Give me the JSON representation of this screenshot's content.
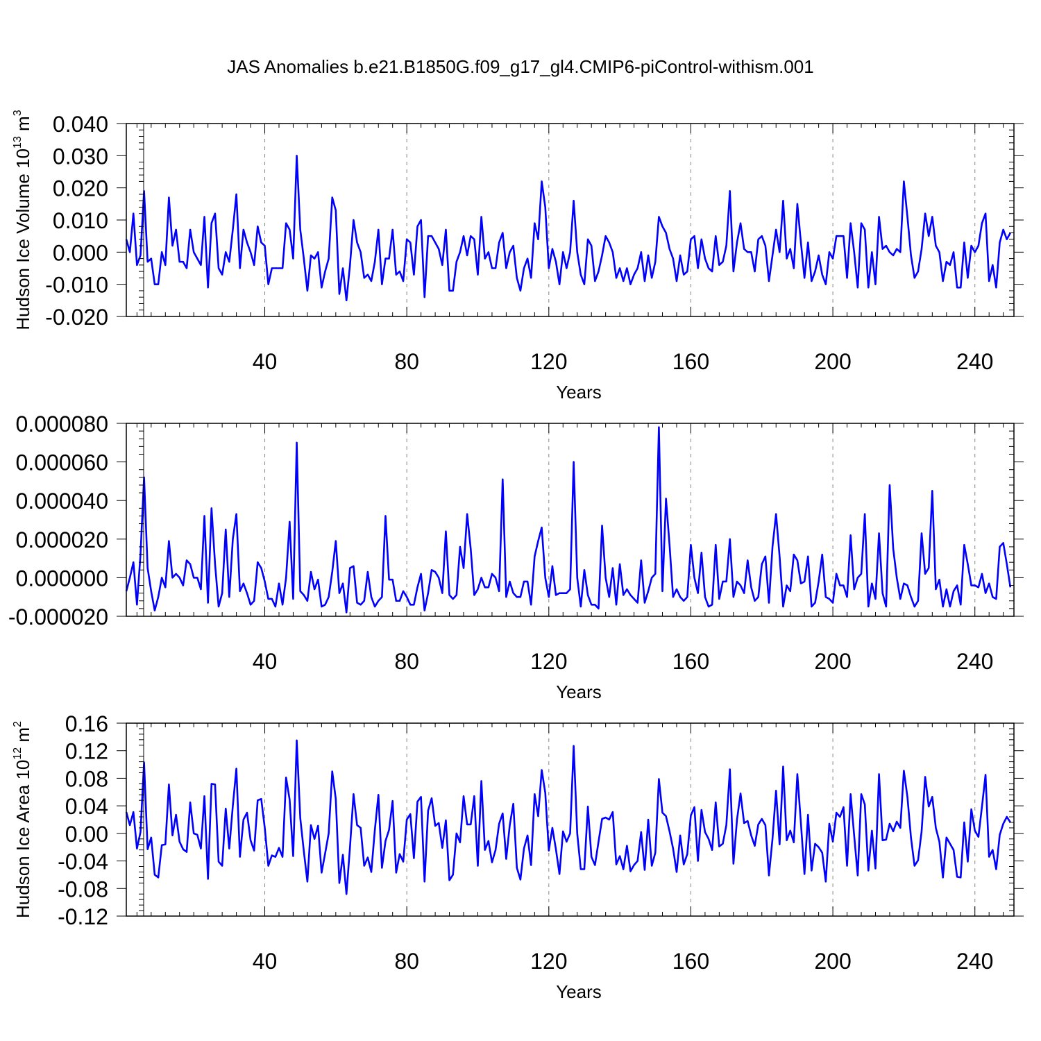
{
  "figure_title": "JAS Anomalies b.e21.B1850G.f09_g17_gl4.CMIP6-piControl-withism.001",
  "line_color": "#0000ff",
  "chart_data": [
    {
      "type": "line",
      "title": "",
      "xlabel": "Years",
      "ylabel": {
        "main": "Hudson Ice Volume 10",
        "sup": "13",
        "unit": " m",
        "unit_sup": "3"
      },
      "xlim": [
        1,
        251
      ],
      "ylim": [
        -0.02,
        0.04
      ],
      "x_ticks": [
        40,
        80,
        120,
        160,
        200,
        240
      ],
      "y_ticks": [
        -0.02,
        -0.01,
        0.0,
        0.01,
        0.02,
        0.03,
        0.04
      ],
      "y_tick_labels": [
        "-0.020",
        "-0.010",
        "0.000",
        "0.010",
        "0.020",
        "0.030",
        "0.040"
      ],
      "grid": "vertical dashed at major x ticks",
      "series": [
        {
          "values": [
            0.004,
            0.0,
            0.012,
            -0.004,
            -0.001,
            0.019,
            -0.003,
            -0.002,
            -0.01,
            -0.01,
            0.0,
            -0.004,
            0.017,
            0.002,
            0.007,
            -0.003,
            -0.003,
            -0.005,
            0.007,
            0.0,
            -0.002,
            -0.004,
            0.011,
            -0.011,
            0.009,
            0.012,
            -0.005,
            -0.007,
            0.0,
            -0.003,
            0.007,
            0.018,
            -0.005,
            0.007,
            0.003,
            0.0,
            -0.004,
            0.008,
            0.003,
            0.002,
            -0.01,
            -0.005,
            -0.005,
            -0.005,
            -0.005,
            0.009,
            0.007,
            -0.002,
            0.03,
            0.007,
            -0.002,
            -0.012,
            -0.001,
            -0.002,
            0.0,
            -0.011,
            -0.006,
            -0.002,
            0.017,
            0.013,
            -0.013,
            -0.005,
            -0.015,
            -0.004,
            0.01,
            0.003,
            0.0,
            -0.008,
            -0.007,
            -0.009,
            -0.003,
            0.007,
            -0.01,
            -0.002,
            -0.002,
            0.007,
            -0.007,
            -0.006,
            -0.009,
            0.004,
            0.003,
            -0.007,
            0.008,
            0.01,
            -0.014,
            0.005,
            0.005,
            0.003,
            0.001,
            -0.004,
            0.007,
            -0.012,
            -0.012,
            -0.003,
            0.0,
            0.005,
            -0.001,
            0.005,
            0.004,
            -0.007,
            0.011,
            -0.002,
            0.0,
            -0.005,
            -0.005,
            0.003,
            0.006,
            -0.005,
            0.0,
            0.002,
            -0.008,
            -0.012,
            -0.005,
            -0.002,
            -0.008,
            0.009,
            0.004,
            0.022,
            0.014,
            -0.005,
            0.001,
            -0.003,
            -0.01,
            0.0,
            -0.005,
            0.0,
            0.016,
            0.0,
            -0.007,
            -0.01,
            0.004,
            0.002,
            -0.009,
            -0.006,
            -0.001,
            0.005,
            0.003,
            0.0,
            -0.008,
            -0.005,
            -0.009,
            -0.005,
            -0.01,
            -0.007,
            -0.005,
            0.0,
            -0.009,
            -0.001,
            -0.008,
            -0.003,
            0.011,
            0.008,
            0.006,
            0.001,
            -0.002,
            -0.009,
            -0.001,
            -0.007,
            -0.006,
            0.004,
            0.005,
            -0.005,
            0.004,
            -0.002,
            -0.005,
            -0.006,
            0.005,
            -0.004,
            -0.003,
            0.002,
            0.019,
            -0.006,
            0.003,
            0.009,
            0.001,
            0.0,
            0.0,
            -0.006,
            0.004,
            0.005,
            0.002,
            -0.009,
            -0.001,
            0.007,
            0.0,
            0.016,
            -0.002,
            0.001,
            -0.005,
            0.015,
            0.003,
            -0.008,
            0.003,
            -0.009,
            -0.006,
            -0.001,
            -0.007,
            -0.01,
            0.0,
            -0.002,
            0.005,
            0.005,
            0.005,
            -0.008,
            0.009,
            0.0,
            -0.011,
            0.009,
            0.007,
            -0.011,
            0.0,
            -0.01,
            0.011,
            0.001,
            0.002,
            0.0,
            -0.001,
            0.001,
            0.0,
            0.022,
            0.011,
            -0.001,
            -0.008,
            -0.006,
            0.001,
            0.012,
            0.005,
            0.011,
            0.002,
            0.0,
            -0.009,
            -0.003,
            -0.004,
            0.0,
            -0.011,
            -0.011,
            0.003,
            -0.008,
            0.002,
            0.0,
            0.002,
            0.009,
            0.012,
            -0.009,
            -0.004,
            -0.011,
            0.003,
            0.007,
            0.004,
            0.006
          ]
        }
      ]
    },
    {
      "type": "line",
      "title": "",
      "xlabel": "Years",
      "ylabel": null,
      "xlim": [
        1,
        251
      ],
      "ylim": [
        -2e-05,
        8e-05
      ],
      "x_ticks": [
        40,
        80,
        120,
        160,
        200,
        240
      ],
      "y_ticks": [
        -2e-05,
        0.0,
        2e-05,
        4e-05,
        6e-05,
        8e-05
      ],
      "y_tick_labels": [
        "-0.000020",
        "0.000000",
        "0.000020",
        "0.000040",
        "0.000060",
        "0.000080"
      ],
      "grid": "vertical dashed at major x ticks",
      "series": [
        {
          "values": [
            -7e-06,
            0.0,
            8e-06,
            -1.4e-05,
            1.2e-05,
            5.2e-05,
            5e-06,
            -7e-06,
            -1.7e-05,
            -1e-05,
            0.0,
            -5e-06,
            1.9e-05,
            0.0,
            2e-06,
            0.0,
            -4e-06,
            9e-06,
            7e-06,
            0.0,
            0.0,
            -6e-06,
            3.2e-05,
            -1.3e-05,
            3.6e-05,
            7e-06,
            -1.5e-05,
            -8e-06,
            2.5e-05,
            -1e-05,
            2e-05,
            3.3e-05,
            -7e-06,
            -3e-06,
            -8e-06,
            -1.4e-05,
            -1.2e-05,
            8e-06,
            5e-06,
            -2e-06,
            -1.1e-05,
            -1.1e-05,
            -1.5e-05,
            -3e-06,
            -1.4e-05,
            0.0,
            2.9e-05,
            -1.1e-05,
            7e-05,
            -7e-06,
            -9e-06,
            -1.2e-05,
            3e-06,
            -6e-06,
            -1e-06,
            -1.5e-05,
            -1.4e-05,
            -1e-05,
            3e-06,
            1.9e-05,
            -8e-06,
            -3e-06,
            -1.8e-05,
            5e-06,
            6e-06,
            -1.3e-05,
            -1.4e-05,
            -1.2e-05,
            3e-06,
            -1e-05,
            -1.5e-05,
            -1.2e-05,
            -1e-05,
            3.2e-05,
            -1e-06,
            -1e-06,
            -1.2e-05,
            -1.2e-05,
            -7e-06,
            -1e-05,
            -1.4e-05,
            -1.4e-05,
            -5e-06,
            2e-06,
            -1.7e-05,
            -8e-06,
            4e-06,
            3e-06,
            0.0,
            -8e-06,
            2.4e-05,
            -9e-06,
            -1.1e-05,
            -9e-06,
            1.6e-05,
            5e-06,
            3.3e-05,
            1.5e-05,
            -9e-06,
            -6e-06,
            0.0,
            -5e-06,
            -5e-06,
            2e-06,
            0.0,
            -7e-06,
            5.1e-05,
            -1e-05,
            -2e-06,
            -8e-06,
            -1e-05,
            -1e-05,
            -2e-06,
            -2e-06,
            -1.4e-05,
            1.1e-05,
            1.9e-05,
            2.6e-05,
            0.0,
            -1e-05,
            6e-06,
            -9e-06,
            -8e-06,
            -8e-06,
            -8e-06,
            -6e-06,
            6e-05,
            0.0,
            -1.5e-05,
            4e-06,
            -9e-06,
            -1.4e-05,
            -1.4e-05,
            -1.6e-05,
            2.7e-05,
            0.0,
            -1e-05,
            5e-06,
            -1.4e-05,
            7e-06,
            -9e-06,
            -6e-06,
            -9e-06,
            -1.1e-05,
            -1.3e-05,
            9e-06,
            -1.3e-05,
            -7e-06,
            0.0,
            2e-06,
            7.8e-05,
            -7e-06,
            4.1e-05,
            1.7e-05,
            -1e-05,
            -6e-06,
            -1e-05,
            -1.2e-05,
            -1e-05,
            1.7e-05,
            0.0,
            -8e-06,
            1.3e-05,
            -1e-05,
            -1.5e-05,
            -1.4e-05,
            1.7e-05,
            -1.1e-05,
            -2e-06,
            -2e-06,
            2e-05,
            -1e-05,
            -2e-06,
            -4e-06,
            -8e-06,
            9e-06,
            -5e-06,
            -1.2e-05,
            -1e-05,
            7e-06,
            1.1e-05,
            -1.3e-05,
            1.6e-05,
            3.3e-05,
            1.1e-05,
            -1.5e-05,
            -4e-06,
            -7e-06,
            1.2e-05,
            9e-06,
            -3e-06,
            -2e-06,
            1.1e-05,
            -1.5e-05,
            -1.3e-05,
            -2e-06,
            1.2e-05,
            -1e-05,
            -1.1e-05,
            -1.3e-05,
            2e-06,
            -4e-06,
            -4e-06,
            -1e-05,
            2.2e-05,
            -6e-06,
            0.0,
            2e-06,
            3.3e-05,
            -1.5e-05,
            -3e-06,
            -1.1e-05,
            2.3e-05,
            -8e-06,
            -1.5e-05,
            4.8e-05,
            1.5e-05,
            0.0,
            -1.1e-05,
            -3e-06,
            -4e-06,
            -1e-05,
            -1.5e-05,
            -1.2e-05,
            2.3e-05,
            2e-06,
            5e-06,
            4.5e-05,
            -6e-06,
            -1e-06,
            -1.5e-05,
            -6e-06,
            -1.5e-05,
            -7e-06,
            -4e-06,
            -1.4e-05,
            1.7e-05,
            7e-06,
            -4e-06,
            -4e-06,
            -5e-06,
            2e-06,
            -8e-06,
            -3e-06,
            -1e-05,
            -1.1e-05,
            1.6e-05,
            1.8e-05,
            7e-06,
            -5e-06
          ]
        }
      ]
    },
    {
      "type": "line",
      "title": "",
      "xlabel": "Years",
      "ylabel": {
        "main": "Hudson Ice Area 10",
        "sup": "12",
        "unit": " m",
        "unit_sup": "2"
      },
      "xlim": [
        1,
        251
      ],
      "ylim": [
        -0.12,
        0.16
      ],
      "x_ticks": [
        40,
        80,
        120,
        160,
        200,
        240
      ],
      "y_ticks": [
        -0.12,
        -0.08,
        -0.04,
        0.0,
        0.04,
        0.08,
        0.12,
        0.16
      ],
      "y_tick_labels": [
        "-0.12",
        "-0.08",
        "-0.04",
        "0.00",
        "0.04",
        "0.08",
        "0.12",
        "0.16"
      ],
      "grid": "vertical dashed at major x ticks",
      "series": [
        {
          "values": [
            0.031,
            0.012,
            0.031,
            -0.022,
            0.002,
            0.103,
            -0.023,
            -0.006,
            -0.06,
            -0.064,
            -0.017,
            -0.016,
            0.071,
            -0.003,
            0.027,
            -0.012,
            -0.023,
            -0.027,
            0.045,
            0.0,
            -0.002,
            -0.022,
            0.054,
            -0.066,
            0.072,
            0.071,
            -0.041,
            -0.047,
            0.036,
            -0.022,
            0.04,
            0.094,
            -0.034,
            0.02,
            0.03,
            -0.01,
            -0.025,
            0.048,
            0.05,
            0.008,
            -0.047,
            -0.032,
            -0.034,
            -0.021,
            -0.034,
            0.081,
            0.049,
            -0.033,
            0.135,
            0.022,
            -0.026,
            -0.07,
            0.012,
            -0.008,
            0.011,
            -0.057,
            -0.029,
            0.0,
            0.09,
            0.05,
            -0.072,
            -0.031,
            -0.088,
            -0.02,
            0.057,
            0.012,
            0.008,
            -0.047,
            -0.035,
            -0.056,
            0.005,
            0.056,
            -0.05,
            -0.011,
            0.005,
            0.047,
            -0.057,
            -0.03,
            -0.041,
            0.02,
            0.028,
            -0.036,
            0.046,
            0.053,
            -0.07,
            0.033,
            0.051,
            0.011,
            0.015,
            -0.021,
            0.019,
            -0.068,
            -0.06,
            0.0,
            -0.013,
            0.054,
            0.013,
            0.013,
            0.054,
            -0.047,
            0.076,
            -0.024,
            -0.011,
            -0.042,
            -0.024,
            0.014,
            0.029,
            -0.037,
            0.012,
            0.043,
            -0.05,
            -0.067,
            -0.022,
            -0.003,
            -0.046,
            0.057,
            0.025,
            0.092,
            0.059,
            -0.025,
            0.008,
            -0.023,
            -0.059,
            0.003,
            -0.012,
            0.0,
            0.127,
            0.0,
            -0.052,
            -0.052,
            0.039,
            -0.034,
            -0.046,
            -0.012,
            0.021,
            0.023,
            0.02,
            0.031,
            -0.045,
            -0.033,
            -0.052,
            -0.018,
            -0.055,
            -0.046,
            -0.04,
            0.002,
            -0.053,
            0.02,
            -0.047,
            -0.028,
            0.079,
            0.03,
            0.025,
            0.003,
            -0.022,
            -0.056,
            -0.003,
            -0.045,
            -0.03,
            0.026,
            0.038,
            -0.04,
            0.034,
            0.002,
            -0.008,
            -0.024,
            0.045,
            -0.019,
            -0.015,
            0.012,
            0.093,
            -0.044,
            0.02,
            0.058,
            0.015,
            0.018,
            -0.003,
            -0.018,
            0.013,
            0.021,
            0.012,
            -0.061,
            -0.008,
            0.062,
            -0.016,
            0.097,
            -0.01,
            0.004,
            -0.013,
            0.086,
            0.015,
            -0.059,
            0.027,
            -0.054,
            -0.015,
            -0.02,
            -0.028,
            -0.07,
            0.014,
            -0.012,
            0.03,
            0.024,
            0.038,
            -0.047,
            0.057,
            -0.003,
            -0.061,
            0.057,
            0.042,
            -0.054,
            0.004,
            -0.051,
            0.086,
            -0.01,
            -0.009,
            0.014,
            0.003,
            0.017,
            0.008,
            0.091,
            0.053,
            -0.006,
            -0.047,
            -0.039,
            0.003,
            0.082,
            0.039,
            0.053,
            0.008,
            -0.012,
            -0.064,
            -0.006,
            -0.015,
            -0.024,
            -0.063,
            -0.064,
            0.016,
            -0.041,
            0.035,
            0.004,
            -0.005,
            0.039,
            0.085,
            -0.034,
            -0.024,
            -0.052,
            -0.002,
            0.014,
            0.024,
            0.016
          ]
        }
      ]
    }
  ]
}
